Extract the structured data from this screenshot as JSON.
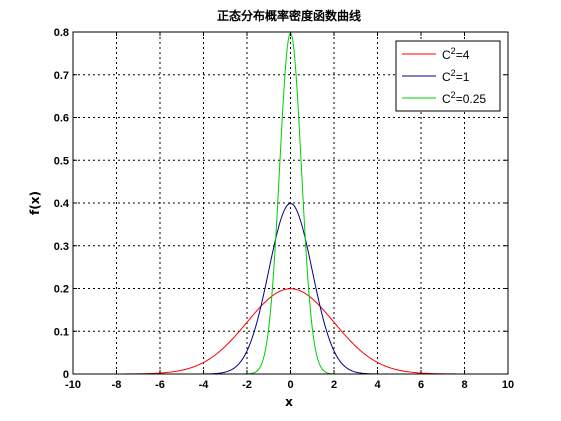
{
  "chart_data": {
    "type": "line",
    "title": "正态分布概率密度函数曲线",
    "xlabel": "x",
    "ylabel": "f(x)",
    "xlim": [
      -10,
      10
    ],
    "ylim": [
      0,
      0.8
    ],
    "xticks": [
      -10,
      -8,
      -6,
      -4,
      -2,
      0,
      2,
      4,
      6,
      8,
      10
    ],
    "yticks": [
      0,
      0.1,
      0.2,
      0.3,
      0.4,
      0.5,
      0.6,
      0.7,
      0.8
    ],
    "xtick_labels": [
      "-10",
      "-8",
      "-6",
      "-4",
      "-2",
      "0",
      "2",
      "4",
      "6",
      "8",
      "10"
    ],
    "ytick_labels": [
      "0",
      "0.1",
      "0.2",
      "0.3",
      "0.4",
      "0.5",
      "0.6",
      "0.7",
      "0.8"
    ],
    "grid": true,
    "grid_style": "dotted",
    "legend_position": "top-right",
    "series": [
      {
        "name": "C2=4",
        "legend_base": "C",
        "legend_sup": "2",
        "legend_rest": "=4",
        "color": "#ff0000",
        "variance": 4,
        "x": [
          -10,
          -8,
          -6,
          -5,
          -4,
          -3,
          -2.5,
          -2,
          -1.5,
          -1,
          -0.5,
          0,
          0.5,
          1,
          1.5,
          2,
          2.5,
          3,
          4,
          5,
          6,
          8,
          10
        ],
        "y": [
          0.0,
          0.0001,
          0.0044,
          0.0088,
          0.027,
          0.0648,
          0.0913,
          0.121,
          0.1506,
          0.176,
          0.1933,
          0.1995,
          0.1933,
          0.176,
          0.1506,
          0.121,
          0.0913,
          0.0648,
          0.027,
          0.0088,
          0.0044,
          0.0001,
          0.0
        ]
      },
      {
        "name": "C2=1",
        "legend_base": "C",
        "legend_sup": "2",
        "legend_rest": "=1",
        "color": "#00008b",
        "variance": 1,
        "x": [
          -10,
          -4,
          -3,
          -2.5,
          -2,
          -1.5,
          -1,
          -0.5,
          0,
          0.5,
          1,
          1.5,
          2,
          2.5,
          3,
          4,
          10
        ],
        "y": [
          0.0,
          0.0001,
          0.0044,
          0.0175,
          0.054,
          0.1295,
          0.242,
          0.3521,
          0.3989,
          0.3521,
          0.242,
          0.1295,
          0.054,
          0.0175,
          0.0044,
          0.0001,
          0.0
        ]
      },
      {
        "name": "C2=0.25",
        "legend_base": "C",
        "legend_sup": "2",
        "legend_rest": "=0.25",
        "color": "#00cc00",
        "variance": 0.25,
        "x": [
          -10,
          -2,
          -1.5,
          -1.25,
          -1,
          -0.75,
          -0.5,
          -0.25,
          0,
          0.25,
          0.5,
          0.75,
          1,
          1.25,
          1.5,
          2,
          10
        ],
        "y": [
          0.0,
          0.0003,
          0.0089,
          0.035,
          0.108,
          0.259,
          0.4839,
          0.7041,
          0.7979,
          0.7041,
          0.4839,
          0.259,
          0.108,
          0.035,
          0.0089,
          0.0003,
          0.0
        ]
      }
    ]
  }
}
